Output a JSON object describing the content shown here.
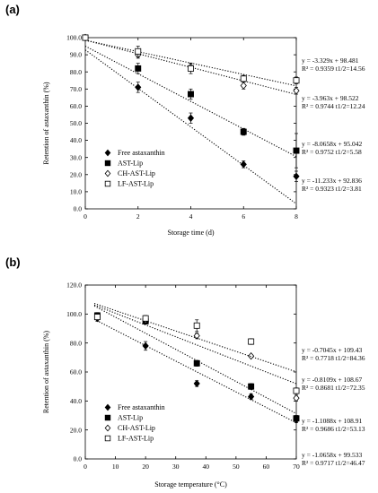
{
  "figure": {
    "panels": [
      {
        "letter": "(a)"
      },
      {
        "letter": "(b)"
      }
    ]
  },
  "chart_data": [
    {
      "type": "scatter",
      "panel": "(a)",
      "xlabel": "Storage time (d)",
      "ylabel": "Retention of astaxanthin (%)",
      "xlim": [
        0,
        8
      ],
      "ylim": [
        0,
        100
      ],
      "x_ticks": [
        0,
        2,
        4,
        6,
        8
      ],
      "y_ticks": [
        0,
        10,
        20,
        30,
        40,
        50,
        60,
        70,
        80,
        90,
        100
      ],
      "x_tick_labels": [
        "0",
        "2",
        "4",
        "6",
        "8"
      ],
      "y_tick_labels": [
        "0.0",
        "10.0",
        "20.0",
        "30.0",
        "40.0",
        "50.0",
        "60.0",
        "70.0",
        "80.0",
        "90.0",
        "100.0"
      ],
      "legend_position": "bottom-left",
      "series": [
        {
          "name": "Free astaxanthin",
          "marker": "filled-diamond",
          "x": [
            0,
            2,
            4,
            6,
            8
          ],
          "y": [
            100,
            71,
            53,
            26,
            19
          ],
          "err": [
            0,
            3,
            3,
            2,
            3
          ],
          "fit": {
            "slope": -11.233,
            "intercept": 92.836
          },
          "equation": "y = -11.233x + 92.836",
          "r2": "R² = 0.9323",
          "half_life": "t1/2=3.81"
        },
        {
          "name": "AST-Lip",
          "marker": "filled-square",
          "x": [
            0,
            2,
            4,
            6,
            8
          ],
          "y": [
            100,
            82,
            67,
            45,
            34
          ],
          "err": [
            0,
            3,
            3,
            2,
            10
          ],
          "fit": {
            "slope": -8.0658,
            "intercept": 95.042
          },
          "equation": "y = -8.0658x + 95.042",
          "r2": "R² = 0.9752",
          "half_life": "t1/2=5.58"
        },
        {
          "name": "CH-AST-Lip",
          "marker": "open-diamond",
          "x": [
            0,
            2,
            4,
            6,
            8
          ],
          "y": [
            100,
            90,
            83,
            72,
            69
          ],
          "err": [
            0,
            2,
            2,
            2,
            2
          ],
          "fit": {
            "slope": -3.963,
            "intercept": 98.522
          },
          "equation": "y = -3.963x + 98.522",
          "r2": "R² = 0.9744",
          "half_life": "t1/2=12.24"
        },
        {
          "name": "LF-AST-Lip",
          "marker": "open-square",
          "x": [
            0,
            2,
            4,
            6,
            8
          ],
          "y": [
            100,
            92,
            82,
            76,
            75
          ],
          "err": [
            0,
            3,
            3,
            2,
            2
          ],
          "fit": {
            "slope": -3.329,
            "intercept": 98.481
          },
          "equation": "y = -3.329x + 98.481",
          "r2": "R² = 0.9359",
          "half_life": "t1/2=14.56"
        }
      ]
    },
    {
      "type": "scatter",
      "panel": "(b)",
      "xlabel": "Storage temperature (°C)",
      "ylabel": "Retention of astaxanthin (%)",
      "xlim": [
        0,
        70
      ],
      "ylim": [
        0,
        120
      ],
      "x_ticks": [
        0,
        10,
        20,
        30,
        40,
        50,
        60,
        70
      ],
      "y_ticks": [
        0,
        20,
        40,
        60,
        80,
        100,
        120
      ],
      "x_tick_labels": [
        "0",
        "10",
        "20",
        "30",
        "40",
        "50",
        "60",
        "70"
      ],
      "y_tick_labels": [
        "0.0",
        "20.0",
        "40.0",
        "60.0",
        "80.0",
        "100.0",
        "120.0"
      ],
      "legend_position": "bottom-left",
      "series": [
        {
          "name": "Free astaxanthin",
          "marker": "filled-diamond",
          "x": [
            4,
            20,
            37,
            55,
            70
          ],
          "y": [
            97,
            78,
            52,
            43,
            27
          ],
          "err": [
            2,
            3,
            2,
            2,
            2
          ],
          "fit": {
            "slope": -1.0658,
            "intercept": 99.533
          },
          "equation": "y = -1.0658x + 99.533",
          "r2": "R² = 0.9717",
          "half_life": "t1/2=46.47"
        },
        {
          "name": "AST-Lip",
          "marker": "filled-square",
          "x": [
            4,
            20,
            37,
            55,
            70
          ],
          "y": [
            99,
            95,
            66,
            50,
            28
          ],
          "err": [
            2,
            2,
            2,
            2,
            2
          ],
          "fit": {
            "slope": -1.1088,
            "intercept": 108.91
          },
          "equation": "y = -1.1088x + 108.91",
          "r2": "R² = 0.9686",
          "half_life": "t1/2=53.13"
        },
        {
          "name": "CH-AST-Lip",
          "marker": "open-diamond",
          "x": [
            4,
            20,
            37,
            55,
            70
          ],
          "y": [
            98,
            96,
            85,
            71,
            42
          ],
          "err": [
            2,
            2,
            2,
            1,
            2
          ],
          "fit": {
            "slope": -0.8109,
            "intercept": 108.67
          },
          "equation": "y = -0.8109x + 108.67",
          "r2": "R² = 0.8681",
          "half_life": "t1/2=72.35"
        },
        {
          "name": "LF-AST-Lip",
          "marker": "open-square",
          "x": [
            4,
            20,
            37,
            55,
            70
          ],
          "y": [
            98,
            97,
            92,
            81,
            47
          ],
          "err": [
            2,
            2,
            4,
            2,
            2
          ],
          "fit": {
            "slope": -0.7045,
            "intercept": 109.43
          },
          "equation": "y = -0.7045x + 109.43",
          "r2": "R² = 0.7718",
          "half_life": "t1/2=84.36"
        }
      ]
    }
  ]
}
